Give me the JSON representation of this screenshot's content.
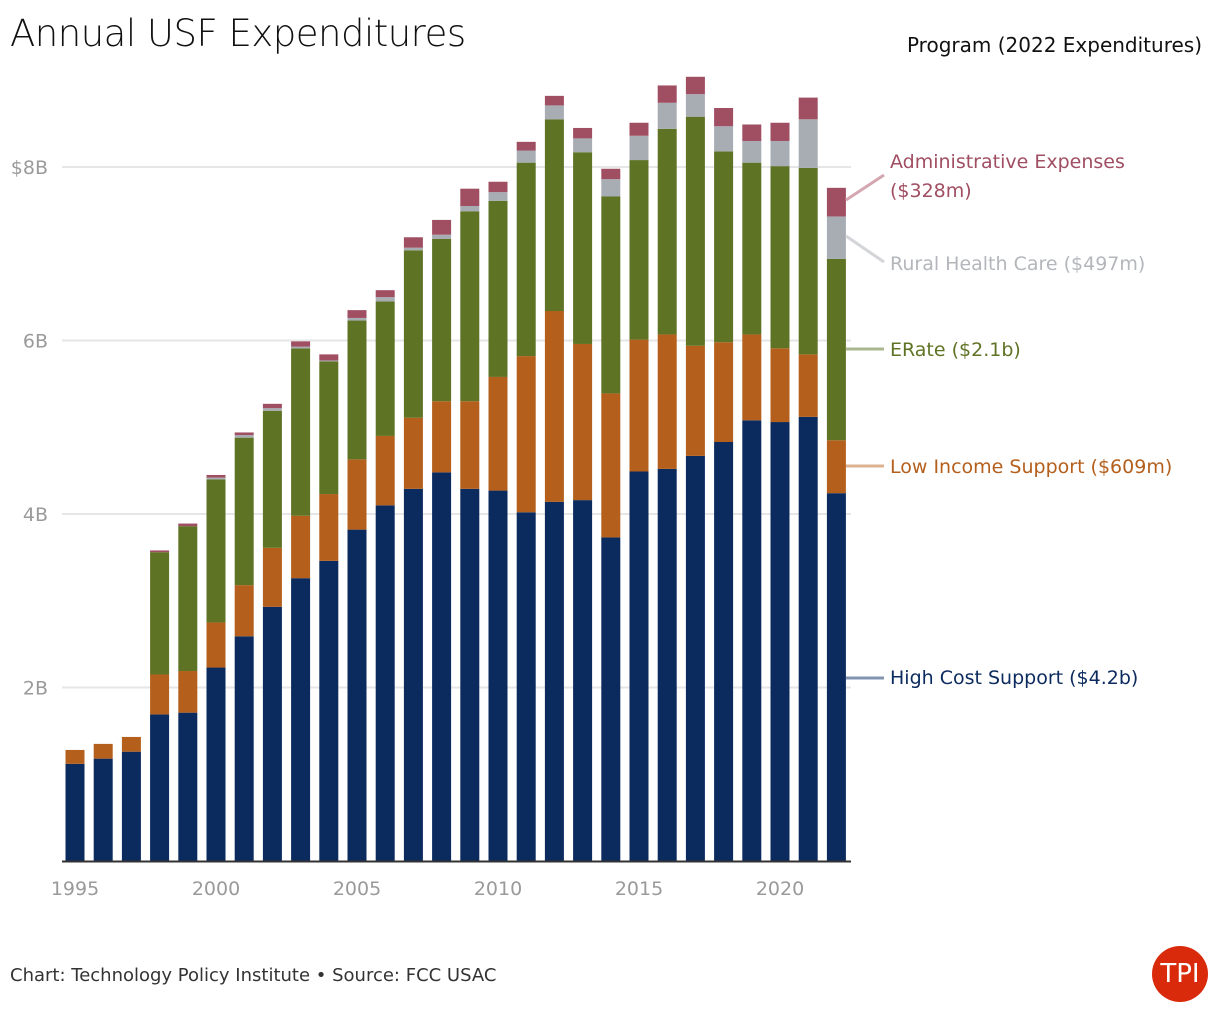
{
  "header": {
    "title": "Annual USF Expenditures",
    "legend_title": "Program (2022 Expenditures)"
  },
  "footer": {
    "credit": "Chart: Technology Policy Institute • Source: FCC USAC",
    "logo_text": "TPI"
  },
  "chart_data": {
    "type": "bar",
    "stacked": true,
    "title": "Annual USF Expenditures",
    "legend_title": "Program (2022 Expenditures)",
    "legend_placement": "right",
    "grid": true,
    "xlabel": "",
    "ylabel": "",
    "ylim": [
      0,
      9.2
    ],
    "y_unit": "billions USD",
    "y_ticks": [
      {
        "value": 2,
        "label": "2B"
      },
      {
        "value": 4,
        "label": "4B"
      },
      {
        "value": 6,
        "label": "6B"
      },
      {
        "value": 8,
        "label": "$8B"
      }
    ],
    "x_ticks": [
      "1995",
      "2000",
      "2005",
      "2010",
      "2015",
      "2020"
    ],
    "categories": [
      1995,
      1996,
      1997,
      1998,
      1999,
      2000,
      2001,
      2002,
      2003,
      2004,
      2005,
      2006,
      2007,
      2008,
      2009,
      2010,
      2011,
      2012,
      2013,
      2014,
      2015,
      2016,
      2017,
      2018,
      2019,
      2020,
      2021,
      2022
    ],
    "series": [
      {
        "name": "High Cost Support",
        "label": "High Cost Support ($4.2b)",
        "color": "#0b2a5e",
        "label_color": "#0b2a5e",
        "line_color": "#8294b0",
        "values": [
          1.12,
          1.18,
          1.26,
          1.69,
          1.71,
          2.23,
          2.59,
          2.93,
          3.26,
          3.46,
          3.82,
          4.1,
          4.29,
          4.48,
          4.29,
          4.27,
          4.02,
          4.14,
          4.16,
          3.73,
          4.49,
          4.52,
          4.67,
          4.83,
          5.08,
          5.06,
          5.12,
          4.24
        ]
      },
      {
        "name": "Low Income Support",
        "label": "Low Income Support ($609m)",
        "color": "#b45f1c",
        "label_color": "#b45f1c",
        "line_color": "#ddb18f",
        "values": [
          0.16,
          0.17,
          0.17,
          0.46,
          0.48,
          0.52,
          0.59,
          0.68,
          0.72,
          0.77,
          0.81,
          0.8,
          0.82,
          0.82,
          1.01,
          1.31,
          1.8,
          2.2,
          1.8,
          1.66,
          1.52,
          1.55,
          1.27,
          1.15,
          0.99,
          0.85,
          0.72,
          0.61
        ]
      },
      {
        "name": "ERate",
        "label": "ERate ($2.1b)",
        "color": "#5f7325",
        "label_color": "#5f7325",
        "line_color": "#aab78f",
        "values": [
          0,
          0,
          0,
          1.41,
          1.67,
          1.65,
          1.7,
          1.58,
          1.93,
          1.53,
          1.6,
          1.55,
          1.93,
          1.87,
          2.19,
          2.03,
          2.23,
          2.21,
          2.21,
          2.27,
          2.07,
          2.37,
          2.64,
          2.2,
          1.98,
          2.1,
          2.15,
          2.09
        ]
      },
      {
        "name": "Rural Health Care",
        "label": "Rural Health Care ($497m)",
        "color": "#a8acb3",
        "label_color": "#b3b6bb",
        "line_color": "#d3d5d8",
        "values": [
          0,
          0,
          0,
          0,
          0,
          0.02,
          0.03,
          0.03,
          0.02,
          0.01,
          0.03,
          0.05,
          0.03,
          0.05,
          0.06,
          0.1,
          0.14,
          0.16,
          0.16,
          0.2,
          0.28,
          0.3,
          0.26,
          0.29,
          0.25,
          0.29,
          0.56,
          0.49
        ]
      },
      {
        "name": "Administrative Expenses",
        "label": "Administrative Expenses ($328m)",
        "label_line1": "Administrative Expenses",
        "label_line2": "($328m)",
        "color": "#a04e62",
        "label_color": "#a04e62",
        "line_color": "#d4a7b1",
        "values": [
          0,
          0,
          0,
          0.02,
          0.03,
          0.03,
          0.03,
          0.05,
          0.06,
          0.07,
          0.09,
          0.08,
          0.12,
          0.17,
          0.2,
          0.12,
          0.1,
          0.11,
          0.12,
          0.12,
          0.15,
          0.2,
          0.2,
          0.21,
          0.19,
          0.21,
          0.25,
          0.33
        ]
      }
    ]
  }
}
